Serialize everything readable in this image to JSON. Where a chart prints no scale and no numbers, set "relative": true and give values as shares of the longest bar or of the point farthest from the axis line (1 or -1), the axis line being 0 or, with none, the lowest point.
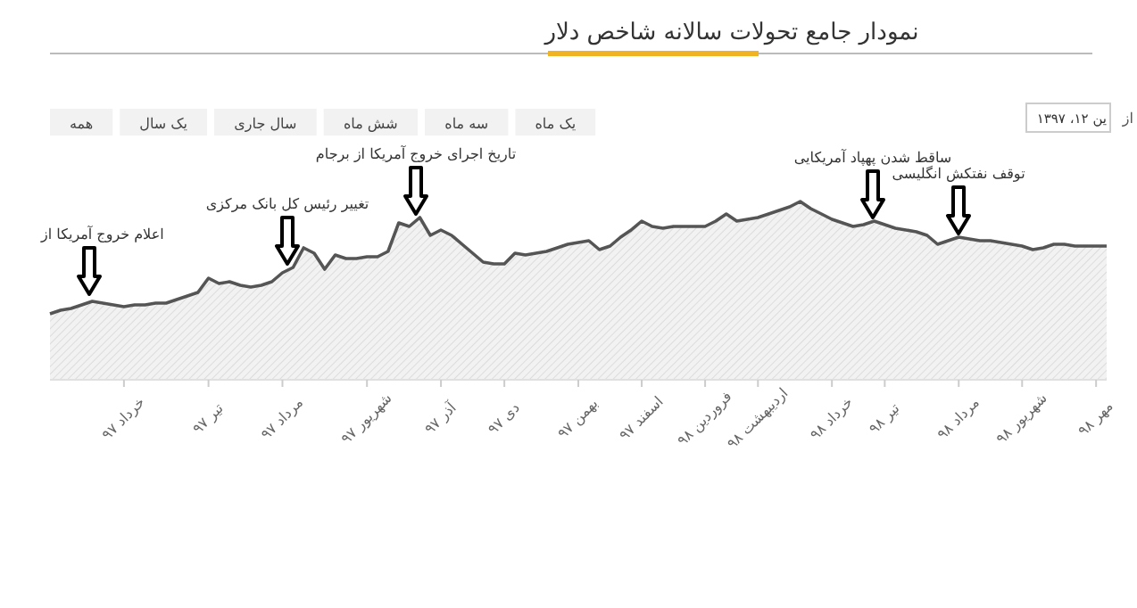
{
  "chart_data": {
    "type": "area",
    "title": "نمودار جامع تحولات سالانه شاخص دلار",
    "relative": true,
    "color": "#555555",
    "categories": [
      null,
      null,
      null,
      null,
      null,
      null,
      null,
      "خرداد ۹۷",
      null,
      null,
      null,
      null,
      null,
      null,
      null,
      "تیر ۹۷",
      null,
      null,
      null,
      null,
      null,
      null,
      "مرداد ۹۷",
      null,
      null,
      null,
      null,
      null,
      null,
      null,
      "شهریور ۹۷",
      null,
      null,
      null,
      null,
      null,
      null,
      "آذر ۹۷",
      null,
      null,
      null,
      null,
      null,
      "دی ۹۷",
      null,
      null,
      null,
      null,
      null,
      null,
      "بهمن ۹۷",
      null,
      null,
      null,
      null,
      null,
      "اسفند ۹۷",
      null,
      null,
      null,
      null,
      null,
      "فروردین ۹۸",
      null,
      null,
      null,
      null,
      "اردیبهشت ۹۸",
      null,
      null,
      null,
      null,
      null,
      null,
      "خرداد ۹۸",
      null,
      null,
      null,
      null,
      "تیر ۹۸",
      null,
      null,
      null,
      null,
      null,
      null,
      "مرداد ۹۸",
      null,
      null,
      null,
      null,
      null,
      "شهریور ۹۸",
      null,
      null,
      null,
      null,
      null,
      null,
      "مهر ۹۸",
      null
    ],
    "values": [
      0.37,
      0.39,
      0.4,
      0.42,
      0.44,
      0.43,
      0.42,
      0.41,
      0.42,
      0.42,
      0.43,
      0.43,
      0.45,
      0.47,
      0.49,
      0.57,
      0.54,
      0.55,
      0.53,
      0.52,
      0.53,
      0.55,
      0.6,
      0.63,
      0.74,
      0.71,
      0.62,
      0.7,
      0.68,
      0.68,
      0.69,
      0.69,
      0.72,
      0.88,
      0.86,
      0.91,
      0.81,
      0.84,
      0.81,
      0.76,
      0.71,
      0.66,
      0.65,
      0.65,
      0.71,
      0.7,
      0.71,
      0.72,
      0.74,
      0.76,
      0.77,
      0.78,
      0.73,
      0.75,
      0.8,
      0.84,
      0.89,
      0.86,
      0.85,
      0.86,
      0.86,
      0.86,
      0.86,
      0.89,
      0.93,
      0.89,
      0.9,
      0.91,
      0.93,
      0.95,
      0.97,
      1,
      0.96,
      0.93,
      0.9,
      0.88,
      0.86,
      0.87,
      0.89,
      0.87,
      0.85,
      0.84,
      0.83,
      0.81,
      0.76,
      0.78,
      0.8,
      0.79,
      0.78,
      0.78,
      0.77,
      0.76,
      0.75,
      0.73,
      0.74,
      0.76,
      0.76,
      0.75,
      0.75,
      0.75,
      0.75
    ],
    "annotations": [
      "اعلام خروج آمریکا از",
      "تغییر رئیس کل بانک مرکزی",
      "تاریخ اجرای خروج آمریکا از برجام",
      "ساقط شدن پهپاد آمریکایی",
      "توقف نفتکش انگلیسی",
      "همه",
      "یک سال",
      "سال جاری",
      "شش ماه",
      "سه ماه",
      "یک ماه",
      "ین ۱۲، ۱۳۹۷",
      "از"
    ]
  }
}
